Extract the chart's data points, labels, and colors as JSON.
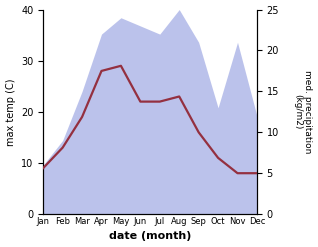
{
  "months": [
    "Jan",
    "Feb",
    "Mar",
    "Apr",
    "May",
    "Jun",
    "Jul",
    "Aug",
    "Sep",
    "Oct",
    "Nov",
    "Dec"
  ],
  "temperature": [
    9,
    13,
    19,
    28,
    29,
    22,
    22,
    23,
    16,
    11,
    8,
    8
  ],
  "precipitation": [
    6,
    9,
    15,
    22,
    24,
    23,
    22,
    25,
    21,
    13,
    21,
    12
  ],
  "temp_color": "#943040",
  "precip_color": "#b0b8e8",
  "ylabel_left": "max temp (C)",
  "ylabel_right": "med. precipitation\n(kg/m2)",
  "xlabel": "date (month)",
  "ylim_left": [
    0,
    40
  ],
  "ylim_right": [
    0,
    25
  ],
  "bg_color": "#ffffff"
}
